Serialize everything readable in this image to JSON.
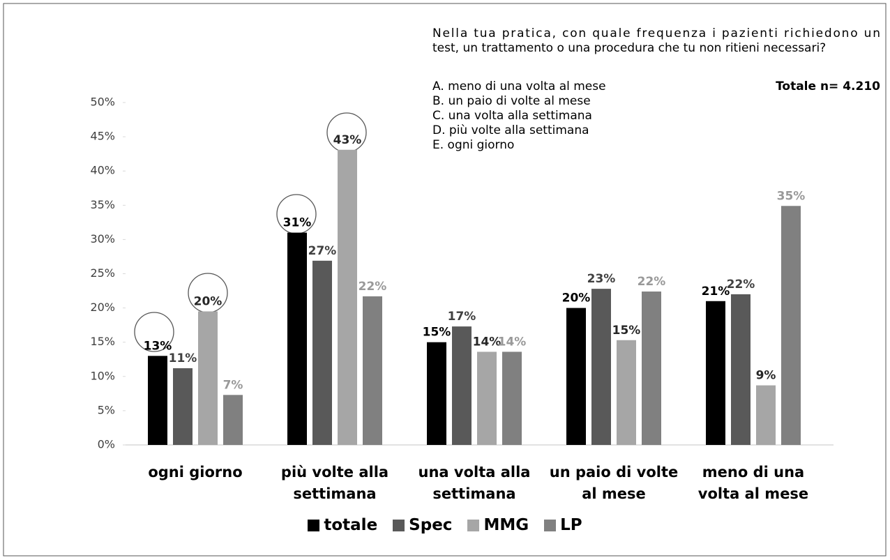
{
  "chart_data": {
    "type": "bar",
    "question_lines": [
      "Nella tua pratica, con quale frequenza i pazienti richiedono un",
      "test, un trattamento o una procedura che tu non ritieni necessari?"
    ],
    "options": [
      "A. meno di una volta al mese",
      "B. un paio di volte al mese",
      "C. una volta alla settimana",
      "D. più volte alla settimana",
      "E. ogni giorno"
    ],
    "total_label": "Totale n= 4.210",
    "categories": [
      "ogni giorno",
      "più volte alla\nsettimana",
      "una volta alla\nsettimana",
      "un paio di volte\nal mese",
      "meno di una\nvolta al mese"
    ],
    "series": [
      {
        "name": "totale",
        "color": "#000000",
        "label_color": "#000000",
        "values": [
          13,
          31,
          15,
          20,
          21
        ],
        "value_labels": [
          "13%",
          "31%",
          "15%",
          "20%",
          "21%"
        ]
      },
      {
        "name": "Spec",
        "color": "#595959",
        "label_color": "#404040",
        "values": [
          11.2,
          26.9,
          17.3,
          22.8,
          22
        ],
        "value_labels": [
          "11%",
          "27%",
          "17%",
          "23%",
          "22%"
        ]
      },
      {
        "name": "MMG",
        "color": "#a6a6a6",
        "label_color": "#262626",
        "values": [
          19.5,
          43.1,
          13.6,
          15.3,
          8.7
        ],
        "value_labels": [
          "20%",
          "43%",
          "14%",
          "15%",
          "9%"
        ]
      },
      {
        "name": "LP",
        "color": "#808080",
        "label_color": "#999999",
        "values": [
          7.3,
          21.7,
          13.6,
          22.4,
          34.9
        ],
        "value_labels": [
          "7%",
          "22%",
          "14%",
          "22%",
          "35%"
        ]
      }
    ],
    "ylim": [
      0,
      50
    ],
    "yticks": [
      {
        "value": 0,
        "label": "0%"
      },
      {
        "value": 5,
        "label": "5%"
      },
      {
        "value": 10,
        "label": "10%"
      },
      {
        "value": 15,
        "label": "15%"
      },
      {
        "value": 20,
        "label": "20%"
      },
      {
        "value": 25,
        "label": "25%"
      },
      {
        "value": 30,
        "label": "30%"
      },
      {
        "value": 35,
        "label": "35%"
      },
      {
        "value": 40,
        "label": "40%"
      },
      {
        "value": 45,
        "label": "45%"
      },
      {
        "value": 50,
        "label": "50%"
      }
    ],
    "legend": "bottom"
  }
}
